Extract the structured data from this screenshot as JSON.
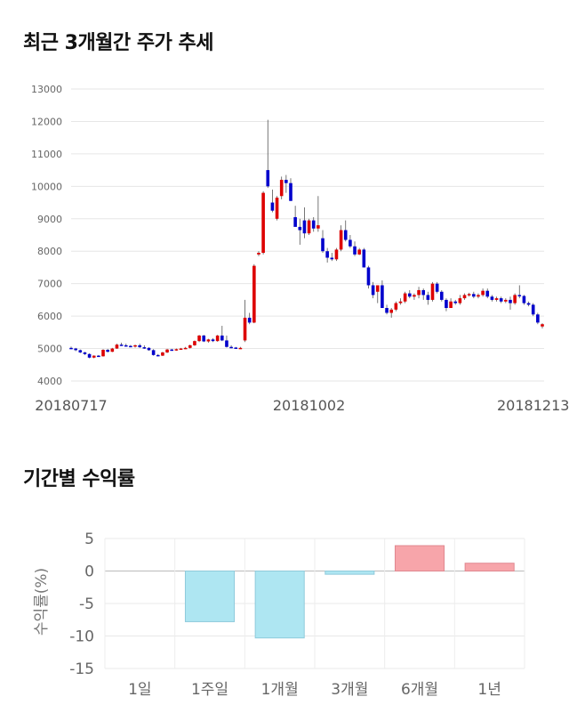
{
  "section1": {
    "title": "최근 3개월간 주가 추세"
  },
  "section2": {
    "title": "기간별 수익률"
  },
  "chart_data": [
    {
      "type": "candlestick",
      "title": "최근 3개월간 주가 추세",
      "ylim": [
        4000,
        13000
      ],
      "yticks": [
        4000,
        5000,
        6000,
        7000,
        8000,
        9000,
        10000,
        11000,
        12000,
        13000
      ],
      "xtick_labels": [
        {
          "index": 0,
          "label": "20180717"
        },
        {
          "index": 52,
          "label": "20181002"
        },
        {
          "index": 101,
          "label": "20181213"
        }
      ],
      "grid": true,
      "up_color": "#dd0000",
      "down_color": "#0000cc",
      "candles": [
        [
          5020,
          5060,
          4980,
          5000
        ],
        [
          5000,
          5020,
          4920,
          4950
        ],
        [
          4950,
          4970,
          4860,
          4880
        ],
        [
          4880,
          4900,
          4800,
          4830
        ],
        [
          4830,
          4850,
          4700,
          4720
        ],
        [
          4720,
          4790,
          4700,
          4780
        ],
        [
          4780,
          4800,
          4740,
          4760
        ],
        [
          4760,
          4980,
          4750,
          4960
        ],
        [
          4960,
          4990,
          4880,
          4900
        ],
        [
          4900,
          5020,
          4890,
          5000
        ],
        [
          5000,
          5150,
          4990,
          5120
        ],
        [
          5120,
          5180,
          5080,
          5100
        ],
        [
          5100,
          5150,
          5060,
          5080
        ],
        [
          5080,
          5110,
          5040,
          5060
        ],
        [
          5060,
          5120,
          5030,
          5100
        ],
        [
          5100,
          5150,
          5020,
          5040
        ],
        [
          5040,
          5100,
          4990,
          5020
        ],
        [
          5020,
          5040,
          4930,
          4950
        ],
        [
          4950,
          4980,
          4780,
          4800
        ],
        [
          4800,
          4830,
          4760,
          4780
        ],
        [
          4780,
          4900,
          4770,
          4880
        ],
        [
          4880,
          4990,
          4860,
          4970
        ],
        [
          4970,
          4990,
          4930,
          4950
        ],
        [
          4950,
          5000,
          4930,
          4980
        ],
        [
          4980,
          5020,
          4960,
          5000
        ],
        [
          5000,
          5050,
          4980,
          5020
        ],
        [
          5020,
          5120,
          5000,
          5100
        ],
        [
          5100,
          5250,
          5080,
          5230
        ],
        [
          5230,
          5420,
          5200,
          5400
        ],
        [
          5400,
          5420,
          5200,
          5220
        ],
        [
          5220,
          5300,
          5180,
          5280
        ],
        [
          5280,
          5320,
          5200,
          5230
        ],
        [
          5230,
          5420,
          5210,
          5400
        ],
        [
          5400,
          5700,
          5230,
          5250
        ],
        [
          5250,
          5400,
          5030,
          5050
        ],
        [
          5050,
          5100,
          5010,
          5030
        ],
        [
          5030,
          5050,
          5000,
          5020
        ],
        [
          5020,
          5050,
          5000,
          5020
        ],
        [
          5250,
          6500,
          5200,
          5950
        ],
        [
          5950,
          6100,
          5750,
          5800
        ],
        [
          5800,
          7600,
          5780,
          7550
        ],
        [
          7900,
          8000,
          7850,
          7950
        ],
        [
          7950,
          9850,
          7900,
          9800
        ],
        [
          10500,
          12050,
          9950,
          10000
        ],
        [
          9500,
          9900,
          9200,
          9250
        ],
        [
          9000,
          9700,
          8950,
          9650
        ],
        [
          9700,
          10300,
          9600,
          10200
        ],
        [
          10200,
          10350,
          9800,
          10100
        ],
        [
          10100,
          10250,
          9550,
          9550
        ],
        [
          9050,
          9400,
          8800,
          8750
        ],
        [
          8750,
          9000,
          8200,
          8650
        ],
        [
          8950,
          9350,
          8400,
          8550
        ],
        [
          8550,
          9000,
          8500,
          8950
        ],
        [
          8950,
          9050,
          8600,
          8700
        ],
        [
          8700,
          9700,
          8600,
          8800
        ],
        [
          8400,
          8650,
          7950,
          8000
        ],
        [
          8000,
          8100,
          7650,
          7800
        ],
        [
          7800,
          7950,
          7700,
          7750
        ],
        [
          7750,
          8100,
          7700,
          8050
        ],
        [
          8050,
          8800,
          8000,
          8650
        ],
        [
          8650,
          8950,
          8300,
          8350
        ],
        [
          8350,
          8500,
          8100,
          8150
        ],
        [
          8150,
          8300,
          7850,
          7900
        ],
        [
          7900,
          8100,
          7880,
          8050
        ],
        [
          8050,
          8100,
          7500,
          7500
        ],
        [
          7500,
          7550,
          6850,
          6950
        ],
        [
          6950,
          7050,
          6550,
          6650
        ],
        [
          6750,
          6950,
          6400,
          6950
        ],
        [
          6950,
          7100,
          6250,
          6250
        ],
        [
          6250,
          6350,
          6050,
          6100
        ],
        [
          6100,
          6250,
          5950,
          6200
        ],
        [
          6200,
          6450,
          6150,
          6400
        ],
        [
          6400,
          6550,
          6350,
          6450
        ],
        [
          6450,
          6750,
          6400,
          6700
        ],
        [
          6700,
          6800,
          6550,
          6600
        ],
        [
          6600,
          6700,
          6500,
          6650
        ],
        [
          6650,
          6900,
          6550,
          6800
        ],
        [
          6800,
          6850,
          6500,
          6650
        ],
        [
          6650,
          6750,
          6350,
          6500
        ],
        [
          6500,
          7050,
          6450,
          7000
        ],
        [
          7000,
          7050,
          6700,
          6750
        ],
        [
          6750,
          6800,
          6450,
          6500
        ],
        [
          6500,
          6550,
          6150,
          6250
        ],
        [
          6250,
          6550,
          6250,
          6450
        ],
        [
          6450,
          6500,
          6350,
          6400
        ],
        [
          6400,
          6650,
          6350,
          6550
        ],
        [
          6550,
          6700,
          6500,
          6650
        ],
        [
          6650,
          6720,
          6600,
          6680
        ],
        [
          6680,
          6750,
          6550,
          6600
        ],
        [
          6600,
          6700,
          6550,
          6650
        ],
        [
          6650,
          6850,
          6600,
          6780
        ],
        [
          6780,
          6850,
          6550,
          6600
        ],
        [
          6600,
          6650,
          6450,
          6500
        ],
        [
          6500,
          6600,
          6450,
          6550
        ],
        [
          6550,
          6600,
          6400,
          6450
        ],
        [
          6450,
          6550,
          6400,
          6500
        ],
        [
          6500,
          6600,
          6200,
          6400
        ],
        [
          6400,
          6700,
          6350,
          6650
        ],
        [
          6650,
          6950,
          6550,
          6620
        ],
        [
          6620,
          6650,
          6350,
          6400
        ],
        [
          6400,
          6450,
          6300,
          6350
        ],
        [
          6350,
          6400,
          6000,
          6050
        ],
        [
          6050,
          6100,
          5750,
          5800
        ],
        [
          5680,
          5780,
          5620,
          5750
        ]
      ]
    },
    {
      "type": "bar",
      "title": "기간별 수익률",
      "ylabel": "수익률(%)",
      "ylim": [
        -15,
        5
      ],
      "yticks": [
        5,
        0,
        -5,
        -10,
        -15
      ],
      "categories": [
        "1일",
        "1주일",
        "1개월",
        "3개월",
        "6개월",
        "1년"
      ],
      "values": [
        0,
        -7.8,
        -10.3,
        -0.5,
        3.9,
        1.2
      ],
      "positive_color": "#f7a5aa",
      "negative_color": "#aee6f2",
      "grid": true
    }
  ]
}
